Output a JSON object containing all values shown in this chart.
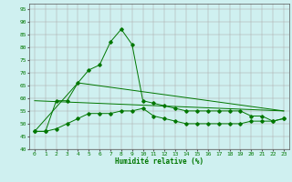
{
  "line1": {
    "x": [
      0,
      1,
      2,
      3,
      4,
      5,
      6,
      7,
      8,
      9,
      10,
      11,
      12,
      13,
      14,
      15,
      16,
      17,
      18,
      19,
      20,
      21,
      22,
      23
    ],
    "y": [
      47,
      47,
      48,
      50,
      52,
      54,
      54,
      54,
      55,
      55,
      56,
      53,
      52,
      51,
      50,
      50,
      50,
      50,
      50,
      50,
      51,
      51,
      51,
      52
    ],
    "color": "#007700",
    "lw": 0.7,
    "marker": "D",
    "ms": 1.8
  },
  "line2": {
    "x": [
      0,
      1,
      2,
      3,
      4,
      5,
      6,
      7,
      8,
      9,
      10,
      11,
      12,
      13,
      14,
      15,
      16,
      17,
      18,
      19,
      20,
      21,
      22,
      23
    ],
    "y": [
      47,
      47,
      59,
      59,
      66,
      71,
      73,
      82,
      87,
      81,
      59,
      58,
      57,
      56,
      55,
      55,
      55,
      55,
      55,
      55,
      53,
      53,
      51,
      52
    ],
    "color": "#007700",
    "lw": 0.7,
    "marker": "D",
    "ms": 1.8
  },
  "line3": {
    "x": [
      0,
      4,
      23
    ],
    "y": [
      47,
      66,
      55
    ],
    "color": "#007700",
    "lw": 0.7
  },
  "line4": {
    "x": [
      0,
      23
    ],
    "y": [
      59,
      55
    ],
    "color": "#007700",
    "lw": 0.7
  },
  "xlabel": "Humidité relative (%)",
  "xlabel_color": "#007700",
  "xlabel_fontsize": 5.5,
  "xlabel_bold": true,
  "ylim": [
    40,
    97
  ],
  "xlim": [
    -0.5,
    23.5
  ],
  "yticks": [
    40,
    45,
    50,
    55,
    60,
    65,
    70,
    75,
    80,
    85,
    90,
    95
  ],
  "xticks": [
    0,
    1,
    2,
    3,
    4,
    5,
    6,
    7,
    8,
    9,
    10,
    11,
    12,
    13,
    14,
    15,
    16,
    17,
    18,
    19,
    20,
    21,
    22,
    23
  ],
  "bg_color": "#cff0f0",
  "grid_color": "#aaaaaa",
  "tick_fontsize": 4.5,
  "ytick_color": "#007700",
  "xtick_color": "#007700"
}
